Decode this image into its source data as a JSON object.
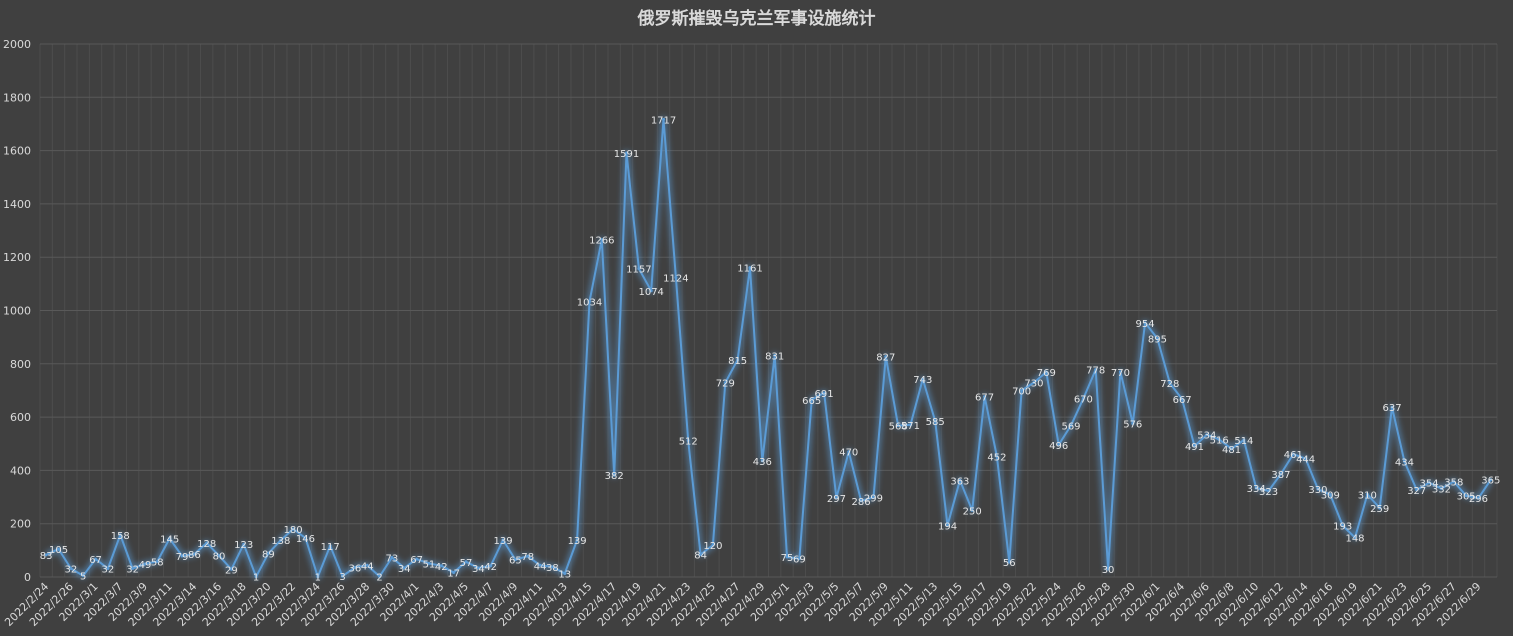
{
  "chart_data": {
    "type": "line",
    "title": "俄罗斯摧毁乌克兰军事设施统计",
    "xlabel": "",
    "ylabel": "",
    "ylim": [
      0,
      2000
    ],
    "yticks": [
      0,
      200,
      400,
      600,
      800,
      1000,
      1200,
      1400,
      1600,
      1800,
      2000
    ],
    "grid": true,
    "legend": "none",
    "colors": {
      "background": "#404040",
      "line": "#5b9bd5",
      "glow": "#5b9bd5",
      "grid": "#595959",
      "text": "#d9d9d9"
    },
    "categories": [
      "2022/2/24",
      "2022/2/25",
      "2022/2/26",
      "2022/2/27",
      "2022/3/1",
      "2022/3/2",
      "2022/3/7",
      "2022/3/8",
      "2022/3/9",
      "2022/3/10",
      "2022/3/11",
      "2022/3/12",
      "2022/3/14",
      "2022/3/15",
      "2022/3/16",
      "2022/3/17",
      "2022/3/18",
      "2022/3/19",
      "2022/3/20",
      "2022/3/21",
      "2022/3/22",
      "2022/3/23",
      "2022/3/24",
      "2022/3/25",
      "2022/3/26",
      "2022/3/27",
      "2022/3/28",
      "2022/3/29",
      "2022/3/30",
      "2022/3/31",
      "2022/4/1",
      "2022/4/2",
      "2022/4/3",
      "2022/4/4",
      "2022/4/5",
      "2022/4/6",
      "2022/4/7",
      "2022/4/8",
      "2022/4/9",
      "2022/4/10",
      "2022/4/11",
      "2022/4/12",
      "2022/4/13",
      "2022/4/14",
      "2022/4/15",
      "2022/4/16",
      "2022/4/17",
      "2022/4/18",
      "2022/4/19",
      "2022/4/20",
      "2022/4/21",
      "2022/4/22",
      "2022/4/23",
      "2022/4/24",
      "2022/4/25",
      "2022/4/26",
      "2022/4/27",
      "2022/4/28",
      "2022/4/29",
      "2022/4/30",
      "2022/5/1",
      "2022/5/2",
      "2022/5/3",
      "2022/5/4",
      "2022/5/5",
      "2022/5/6",
      "2022/5/7",
      "2022/5/8",
      "2022/5/9",
      "2022/5/10",
      "2022/5/11",
      "2022/5/12",
      "2022/5/13",
      "2022/5/14",
      "2022/5/15",
      "2022/5/16",
      "2022/5/17",
      "2022/5/18",
      "2022/5/19",
      "2022/5/20",
      "2022/5/22",
      "2022/5/23",
      "2022/5/24",
      "2022/5/25",
      "2022/5/26",
      "2022/5/27",
      "2022/5/28",
      "2022/5/29",
      "2022/5/30",
      "2022/5/31",
      "2022/6/1",
      "2022/6/3",
      "2022/6/4",
      "2022/6/5",
      "2022/6/6",
      "2022/6/7",
      "2022/6/8",
      "2022/6/9",
      "2022/6/10",
      "2022/6/11",
      "2022/6/12",
      "2022/6/13",
      "2022/6/14",
      "2022/6/15",
      "2022/6/16",
      "2022/6/17",
      "2022/6/19",
      "2022/6/20",
      "2022/6/21",
      "2022/6/22",
      "2022/6/23",
      "2022/6/24",
      "2022/6/25",
      "2022/6/26",
      "2022/6/27",
      "2022/6/28",
      "2022/6/29",
      "2022/6/30"
    ],
    "tick_labels": [
      "2022/2/24",
      "",
      "2022/2/26",
      "",
      "2022/3/1",
      "",
      "2022/3/7",
      "",
      "2022/3/9",
      "",
      "2022/3/11",
      "",
      "2022/3/14",
      "",
      "2022/3/16",
      "",
      "2022/3/18",
      "",
      "2022/3/20",
      "",
      "2022/3/22",
      "",
      "2022/3/24",
      "",
      "2022/3/26",
      "",
      "2022/3/28",
      "",
      "2022/3/30",
      "",
      "2022/4/1",
      "",
      "2022/4/3",
      "",
      "2022/4/5",
      "",
      "2022/4/7",
      "",
      "2022/4/9",
      "",
      "2022/4/11",
      "",
      "2022/4/13",
      "",
      "2022/4/15",
      "",
      "2022/4/17",
      "",
      "2022/4/19",
      "",
      "2022/4/21",
      "",
      "2022/4/23",
      "",
      "2022/4/25",
      "",
      "2022/4/27",
      "",
      "2022/4/29",
      "",
      "2022/5/1",
      "",
      "2022/5/3",
      "",
      "2022/5/5",
      "",
      "2022/5/7",
      "",
      "2022/5/9",
      "",
      "2022/5/11",
      "",
      "2022/5/13",
      "",
      "2022/5/15",
      "",
      "2022/5/17",
      "",
      "2022/5/19",
      "",
      "2022/5/22",
      "",
      "2022/5/24",
      "",
      "2022/5/26",
      "",
      "2022/5/28",
      "",
      "2022/5/30",
      "",
      "2022/6/1",
      "",
      "2022/6/4",
      "",
      "2022/6/6",
      "",
      "2022/6/8",
      "",
      "2022/6/10",
      "",
      "2022/6/12",
      "",
      "2022/6/14",
      "",
      "2022/6/16",
      "",
      "2022/6/19",
      "",
      "2022/6/21",
      "",
      "2022/6/23",
      "",
      "2022/6/25",
      "",
      "2022/6/27",
      "",
      "2022/6/29",
      ""
    ],
    "series": [
      {
        "values": [
          83,
          105,
          32,
          5,
          67,
          32,
          158,
          32,
          49,
          58,
          145,
          79,
          86,
          128,
          80,
          29,
          123,
          1,
          89,
          138,
          180,
          146,
          1,
          117,
          3,
          36,
          44,
          2,
          73,
          34,
          67,
          51,
          42,
          17,
          57,
          34,
          42,
          139,
          65,
          78,
          44,
          38,
          13,
          139,
          1034,
          1266,
          382,
          1591,
          1157,
          1074,
          1717,
          1124,
          512,
          84,
          120,
          729,
          815,
          1161,
          436,
          831,
          75,
          69,
          665,
          691,
          297,
          470,
          286,
          299,
          827,
          568,
          571,
          743,
          585,
          194,
          363,
          250,
          677,
          452,
          56,
          700,
          730,
          769,
          496,
          569,
          670,
          778,
          30,
          770,
          576,
          954,
          895,
          728,
          667,
          491,
          534,
          516,
          481,
          514,
          334,
          323,
          387,
          461,
          444,
          330,
          309,
          193,
          148,
          310,
          259,
          637,
          434,
          327,
          354,
          332,
          358,
          305,
          296,
          365
        ]
      }
    ]
  }
}
